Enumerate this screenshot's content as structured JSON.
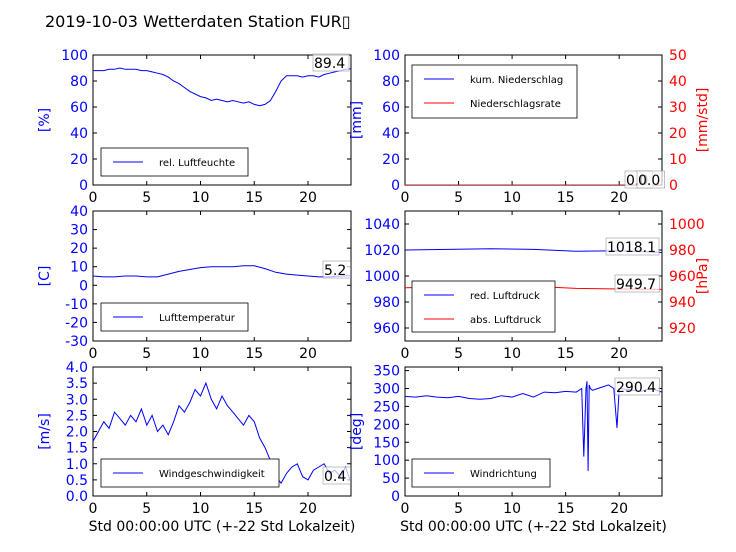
{
  "title": "2019-10-03 Wetterdaten Station FUR",
  "title_glyph": "▯",
  "colors": {
    "left_axis": "#0000ff",
    "right_axis": "#ff0000",
    "line_blue": "#0000ff",
    "line_red": "#ff0000"
  },
  "chart_data": [
    {
      "type": "line",
      "panel": "humidity",
      "xlabel": "",
      "ylabel": "[%]",
      "xlim": [
        0,
        24
      ],
      "ylim": [
        0,
        100
      ],
      "xticks": [
        0,
        5,
        10,
        15,
        20
      ],
      "yticks": [
        0,
        20,
        40,
        60,
        80,
        100
      ],
      "legend": [
        "rel. Luftfeuchte"
      ],
      "legend_position": "lower-left",
      "annotation": "89.4",
      "series": [
        {
          "name": "rel. Luftfeuchte",
          "color": "#0000ff",
          "axis": "left",
          "x": [
            0,
            0.5,
            1,
            1.5,
            2,
            2.5,
            3,
            3.5,
            4,
            4.5,
            5,
            5.5,
            6,
            6.5,
            7,
            7.5,
            8,
            8.5,
            9,
            9.5,
            10,
            10.5,
            11,
            11.5,
            12,
            12.5,
            13,
            13.5,
            14,
            14.5,
            15,
            15.5,
            16,
            16.5,
            17,
            17.5,
            18,
            18.5,
            19,
            19.5,
            20,
            20.5,
            21,
            21.5,
            22,
            22.5,
            23,
            23.5,
            24
          ],
          "y": [
            88,
            88,
            88,
            89,
            89,
            90,
            89,
            89,
            89,
            88,
            88,
            87,
            86,
            85,
            83,
            80,
            78,
            75,
            72,
            70,
            68,
            67,
            65,
            66,
            65,
            64,
            65,
            64,
            63,
            64,
            62,
            61,
            62,
            65,
            72,
            80,
            84,
            84,
            84,
            83,
            84,
            84,
            83,
            85,
            86,
            87,
            88,
            89,
            89.4
          ]
        }
      ]
    },
    {
      "type": "line",
      "panel": "precipitation",
      "xlabel": "",
      "ylabel": "[mm]",
      "ylabel_right": "[mm/std]",
      "xlim": [
        0,
        24
      ],
      "ylim": [
        0,
        100
      ],
      "ylim_right": [
        0,
        50
      ],
      "xticks": [
        0,
        5,
        10,
        15,
        20
      ],
      "yticks": [
        0,
        20,
        40,
        60,
        80,
        100
      ],
      "yticks_right": [
        0,
        10,
        20,
        30,
        40,
        50
      ],
      "legend": [
        "kum. Niederschlag",
        "Niederschlagsrate"
      ],
      "legend_position": "upper-left",
      "annotation": "0.0",
      "annotation2": "0.0",
      "series": [
        {
          "name": "kum. Niederschlag",
          "color": "#0000ff",
          "axis": "left",
          "x": [
            0,
            24
          ],
          "y": [
            0,
            0
          ]
        },
        {
          "name": "Niederschlagsrate",
          "color": "#ff0000",
          "axis": "right",
          "x": [
            0,
            24
          ],
          "y": [
            0,
            0
          ]
        }
      ]
    },
    {
      "type": "line",
      "panel": "temperature",
      "xlabel": "",
      "ylabel": "[C]",
      "xlim": [
        0,
        24
      ],
      "ylim": [
        -30,
        40
      ],
      "xticks": [
        0,
        5,
        10,
        15,
        20
      ],
      "yticks": [
        -30,
        -20,
        -10,
        0,
        10,
        20,
        30,
        40
      ],
      "legend": [
        "Lufttemperatur"
      ],
      "legend_position": "lower-left",
      "annotation": "5.2",
      "series": [
        {
          "name": "Lufttemperatur",
          "color": "#0000ff",
          "axis": "left",
          "x": [
            0,
            1,
            2,
            3,
            4,
            5,
            6,
            7,
            8,
            9,
            10,
            11,
            12,
            13,
            14,
            15,
            16,
            17,
            18,
            19,
            20,
            21,
            22,
            23,
            24
          ],
          "y": [
            5,
            4.5,
            4.5,
            5,
            5,
            4.5,
            4.5,
            6,
            7.5,
            8.5,
            9.5,
            10,
            10,
            10,
            10.5,
            10.5,
            9,
            7,
            6,
            5.5,
            5,
            4.5,
            4.5,
            5,
            5.2
          ]
        }
      ]
    },
    {
      "type": "line",
      "panel": "pressure",
      "xlabel": "",
      "ylabel": "",
      "ylabel_right": "[hPa]",
      "xlim": [
        0,
        24
      ],
      "ylim": [
        950,
        1050
      ],
      "ylim_right": [
        910,
        1010
      ],
      "xticks": [
        0,
        5,
        10,
        15,
        20
      ],
      "yticks": [
        960,
        980,
        1000,
        1020,
        1040
      ],
      "yticks_right": [
        920,
        940,
        960,
        980,
        1000
      ],
      "legend": [
        "red. Luftdruck",
        "abs. Luftdruck"
      ],
      "legend_position": "lower-left",
      "annotation": "1018.1",
      "annotation2": "949.7",
      "series": [
        {
          "name": "red. Luftdruck",
          "color": "#0000ff",
          "axis": "left",
          "x": [
            0,
            4,
            8,
            12,
            16,
            20,
            24
          ],
          "y": [
            1020,
            1020.5,
            1021,
            1020.5,
            1019,
            1019.5,
            1018.1
          ]
        },
        {
          "name": "abs. Luftdruck",
          "color": "#ff0000",
          "axis": "right",
          "x": [
            0,
            4,
            8,
            12,
            16,
            20,
            24
          ],
          "y": [
            951,
            951.5,
            953,
            952,
            950.5,
            950,
            949.7
          ]
        }
      ]
    },
    {
      "type": "line",
      "panel": "wind_speed",
      "xlabel": "Std 00:00:00 UTC (+-22 Std Lokalzeit)",
      "ylabel": "[m/s]",
      "xlim": [
        0,
        24
      ],
      "ylim": [
        0,
        4
      ],
      "xticks": [
        0,
        5,
        10,
        15,
        20
      ],
      "yticks": [
        0.0,
        0.5,
        1.0,
        1.5,
        2.0,
        2.5,
        3.0,
        3.5,
        4.0
      ],
      "legend": [
        "Windgeschwindigkeit"
      ],
      "legend_position": "lower-left",
      "annotation": "0.4",
      "series": [
        {
          "name": "Windgeschwindigkeit",
          "color": "#0000ff",
          "axis": "left",
          "x": [
            0,
            0.5,
            1,
            1.5,
            2,
            2.5,
            3,
            3.5,
            4,
            4.5,
            5,
            5.5,
            6,
            6.5,
            7,
            7.5,
            8,
            8.5,
            9,
            9.5,
            10,
            10.5,
            11,
            11.5,
            12,
            12.5,
            13,
            13.5,
            14,
            14.5,
            15,
            15.5,
            16,
            16.5,
            17,
            17.5,
            18,
            18.5,
            19,
            19.5,
            20,
            20.5,
            21,
            21.5,
            22,
            22.5,
            23,
            23.5,
            24
          ],
          "y": [
            1.7,
            2.0,
            2.3,
            2.1,
            2.6,
            2.4,
            2.2,
            2.5,
            2.3,
            2.7,
            2.2,
            2.5,
            2.0,
            2.2,
            1.9,
            2.3,
            2.8,
            2.6,
            2.9,
            3.3,
            3.1,
            3.5,
            3.0,
            2.7,
            3.1,
            2.8,
            2.6,
            2.4,
            2.2,
            2.5,
            2.3,
            1.8,
            1.5,
            1.1,
            0.6,
            0.4,
            0.7,
            0.9,
            1.0,
            0.6,
            0.5,
            0.8,
            0.9,
            1.0,
            0.7,
            0.8,
            0.6,
            0.9,
            0.4
          ]
        }
      ]
    },
    {
      "type": "line",
      "panel": "wind_direction",
      "xlabel": "Std 00:00:00 UTC (+-22 Std Lokalzeit)",
      "ylabel": "[deg]",
      "xlim": [
        0,
        24
      ],
      "ylim": [
        0,
        360
      ],
      "xticks": [
        0,
        5,
        10,
        15,
        20
      ],
      "yticks": [
        0,
        50,
        100,
        150,
        200,
        250,
        300,
        350
      ],
      "legend": [
        "Windrichtung"
      ],
      "legend_position": "lower-left",
      "annotation": "290.4",
      "series": [
        {
          "name": "Windrichtung",
          "color": "#0000ff",
          "axis": "left",
          "x": [
            0,
            1,
            2,
            3,
            4,
            5,
            6,
            7,
            8,
            9,
            10,
            11,
            12,
            13,
            14,
            15,
            16,
            16.5,
            16.7,
            16.9,
            17,
            17.1,
            17.2,
            17.3,
            17.5,
            18,
            19,
            19.5,
            19.8,
            20,
            21,
            22,
            23,
            24
          ],
          "y": [
            278,
            276,
            280,
            276,
            274,
            278,
            272,
            270,
            272,
            280,
            276,
            286,
            276,
            290,
            288,
            292,
            290,
            300,
            110,
            300,
            320,
            70,
            310,
            300,
            295,
            300,
            310,
            300,
            190,
            300,
            296,
            292,
            300,
            290
          ]
        }
      ]
    }
  ]
}
